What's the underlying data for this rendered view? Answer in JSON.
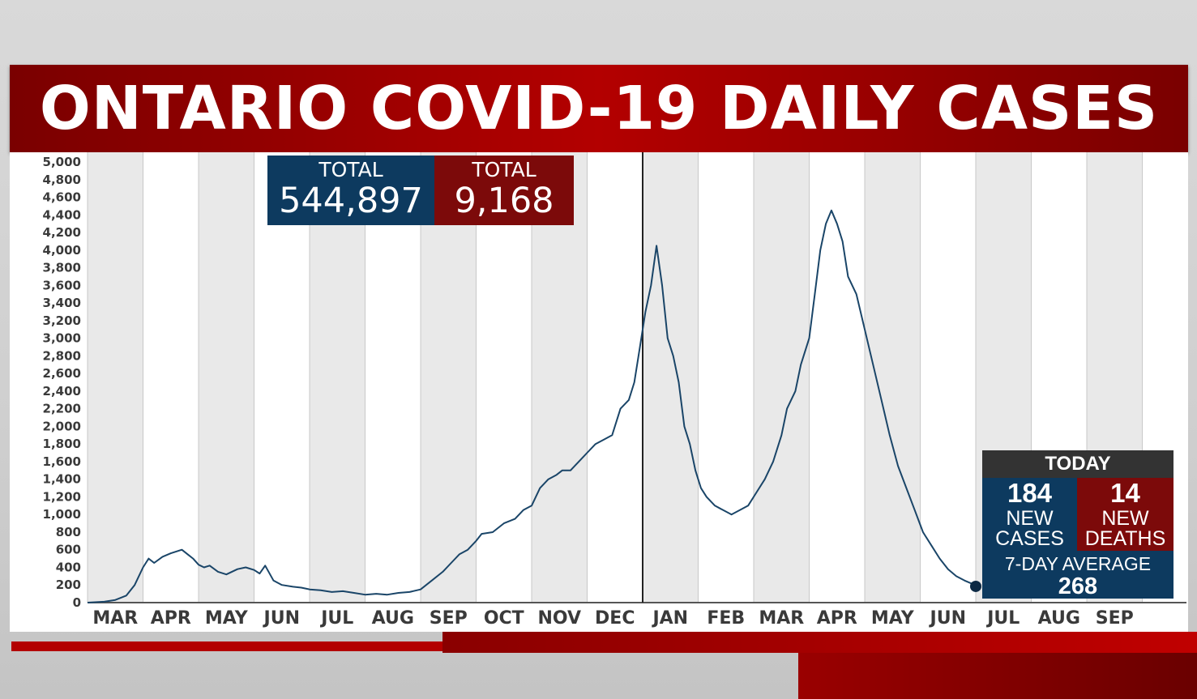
{
  "title": "ONTARIO COVID-19 DAILY CASES",
  "totals": {
    "cases_label": "TOTAL",
    "cases_value": "544,897",
    "deaths_label": "TOTAL",
    "deaths_value": "9,168"
  },
  "today": {
    "header": "TODAY",
    "new_cases": "184",
    "new_cases_label_1": "NEW",
    "new_cases_label_2": "CASES",
    "new_deaths": "14",
    "new_deaths_label_1": "NEW",
    "new_deaths_label_2": "DEATHS",
    "average_label": "7-DAY AVERAGE",
    "average_value": "268"
  },
  "colors": {
    "line": "#1a4568",
    "cases_blue": "#0d3a5f",
    "deaths_red": "#7c0a0a",
    "banner_red": "#b30000",
    "stripe_gray": "#e9e9e9"
  },
  "chart_data": {
    "type": "line",
    "title": "ONTARIO COVID-19 DAILY CASES",
    "xlabel": "",
    "ylabel": "",
    "ylim": [
      0,
      5000
    ],
    "y_ticks": [
      "0",
      "200",
      "400",
      "600",
      "800",
      "1,000",
      "1,200",
      "1,400",
      "1,600",
      "1,800",
      "2,000",
      "2,200",
      "2,400",
      "2,600",
      "2,800",
      "3,000",
      "3,200",
      "3,400",
      "3,600",
      "3,800",
      "4,000",
      "4,200",
      "4,400",
      "4,600",
      "4,800",
      "5,000"
    ],
    "months": [
      "MAR",
      "APR",
      "MAY",
      "JUN",
      "JUL",
      "AUG",
      "SEP",
      "OCT",
      "NOV",
      "DEC",
      "JAN",
      "FEB",
      "MAR",
      "APR",
      "MAY",
      "JUN",
      "JUL",
      "AUG",
      "SEP"
    ],
    "x_unit": "month index (0 = MAR 2020 start)",
    "year_divider_at_month": 10,
    "grid": "alternating vertical month bands",
    "series": [
      {
        "points": [
          [
            0.0,
            0
          ],
          [
            0.3,
            10
          ],
          [
            0.5,
            30
          ],
          [
            0.7,
            80
          ],
          [
            0.85,
            200
          ],
          [
            1.0,
            400
          ],
          [
            1.1,
            500
          ],
          [
            1.2,
            450
          ],
          [
            1.35,
            520
          ],
          [
            1.5,
            560
          ],
          [
            1.7,
            600
          ],
          [
            1.8,
            550
          ],
          [
            1.9,
            500
          ],
          [
            2.0,
            430
          ],
          [
            2.1,
            400
          ],
          [
            2.2,
            420
          ],
          [
            2.35,
            350
          ],
          [
            2.5,
            320
          ],
          [
            2.7,
            380
          ],
          [
            2.85,
            400
          ],
          [
            3.0,
            370
          ],
          [
            3.1,
            330
          ],
          [
            3.2,
            420
          ],
          [
            3.35,
            250
          ],
          [
            3.5,
            200
          ],
          [
            3.7,
            180
          ],
          [
            3.85,
            170
          ],
          [
            4.0,
            150
          ],
          [
            4.2,
            140
          ],
          [
            4.4,
            120
          ],
          [
            4.6,
            130
          ],
          [
            4.8,
            110
          ],
          [
            5.0,
            90
          ],
          [
            5.2,
            100
          ],
          [
            5.4,
            90
          ],
          [
            5.6,
            110
          ],
          [
            5.8,
            120
          ],
          [
            6.0,
            150
          ],
          [
            6.2,
            250
          ],
          [
            6.4,
            350
          ],
          [
            6.55,
            450
          ],
          [
            6.7,
            550
          ],
          [
            6.85,
            600
          ],
          [
            7.0,
            700
          ],
          [
            7.1,
            780
          ],
          [
            7.3,
            800
          ],
          [
            7.5,
            900
          ],
          [
            7.7,
            950
          ],
          [
            7.85,
            1050
          ],
          [
            8.0,
            1100
          ],
          [
            8.15,
            1300
          ],
          [
            8.3,
            1400
          ],
          [
            8.45,
            1450
          ],
          [
            8.55,
            1500
          ],
          [
            8.7,
            1500
          ],
          [
            8.85,
            1600
          ],
          [
            9.0,
            1700
          ],
          [
            9.15,
            1800
          ],
          [
            9.3,
            1850
          ],
          [
            9.45,
            1900
          ],
          [
            9.6,
            2200
          ],
          [
            9.75,
            2300
          ],
          [
            9.85,
            2500
          ],
          [
            9.95,
            2900
          ],
          [
            10.05,
            3300
          ],
          [
            10.15,
            3600
          ],
          [
            10.25,
            4050
          ],
          [
            10.35,
            3600
          ],
          [
            10.45,
            3000
          ],
          [
            10.55,
            2800
          ],
          [
            10.65,
            2500
          ],
          [
            10.75,
            2000
          ],
          [
            10.85,
            1800
          ],
          [
            10.95,
            1500
          ],
          [
            11.05,
            1300
          ],
          [
            11.15,
            1200
          ],
          [
            11.3,
            1100
          ],
          [
            11.45,
            1050
          ],
          [
            11.6,
            1000
          ],
          [
            11.75,
            1050
          ],
          [
            11.9,
            1100
          ],
          [
            12.05,
            1250
          ],
          [
            12.2,
            1400
          ],
          [
            12.35,
            1600
          ],
          [
            12.5,
            1900
          ],
          [
            12.6,
            2200
          ],
          [
            12.75,
            2400
          ],
          [
            12.85,
            2700
          ],
          [
            13.0,
            3000
          ],
          [
            13.1,
            3500
          ],
          [
            13.2,
            4000
          ],
          [
            13.3,
            4300
          ],
          [
            13.4,
            4450
          ],
          [
            13.5,
            4300
          ],
          [
            13.6,
            4100
          ],
          [
            13.7,
            3700
          ],
          [
            13.85,
            3500
          ],
          [
            14.0,
            3100
          ],
          [
            14.15,
            2700
          ],
          [
            14.3,
            2300
          ],
          [
            14.45,
            1900
          ],
          [
            14.6,
            1550
          ],
          [
            14.75,
            1300
          ],
          [
            14.9,
            1050
          ],
          [
            15.05,
            800
          ],
          [
            15.2,
            650
          ],
          [
            15.35,
            500
          ],
          [
            15.5,
            380
          ],
          [
            15.65,
            300
          ],
          [
            15.8,
            250
          ],
          [
            15.95,
            210
          ],
          [
            16.0,
            184
          ]
        ]
      }
    ],
    "last_point": {
      "x": 16.0,
      "y": 184
    }
  }
}
